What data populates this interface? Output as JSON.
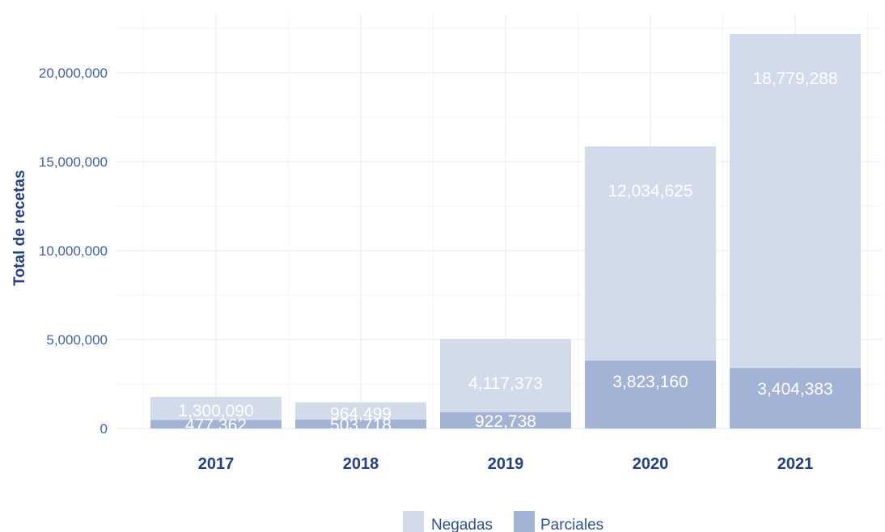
{
  "chart_data": {
    "type": "bar",
    "stacked": true,
    "categories": [
      "2017",
      "2018",
      "2019",
      "2020",
      "2021"
    ],
    "series": [
      {
        "name": "Parciales",
        "values": [
          477362,
          503718,
          922738,
          3823160,
          3404383
        ],
        "color": "#a3b3d6"
      },
      {
        "name": "Negadas",
        "values": [
          1300090,
          964499,
          4117373,
          12034625,
          18779288
        ],
        "color": "#d2dbea"
      }
    ],
    "data_labels": {
      "Parciales": [
        "477,362",
        "503,718",
        "922,738",
        "3,823,160",
        "3,404,383"
      ],
      "Negadas": [
        "1,300,090",
        "964,499",
        "4,117,373",
        "12,034,625",
        "18,779,288"
      ]
    },
    "title": "",
    "xlabel": "",
    "ylabel": "Total de recetas",
    "ylim": [
      0,
      22500000
    ],
    "yticks": [
      0,
      5000000,
      10000000,
      15000000,
      20000000
    ],
    "ytick_labels": [
      "0",
      "5,000,000",
      "10,000,000",
      "15,000,000",
      "20,000,000"
    ],
    "legend": {
      "position": "bottom",
      "entries": [
        "Negadas",
        "Parciales"
      ]
    },
    "grid": true
  }
}
